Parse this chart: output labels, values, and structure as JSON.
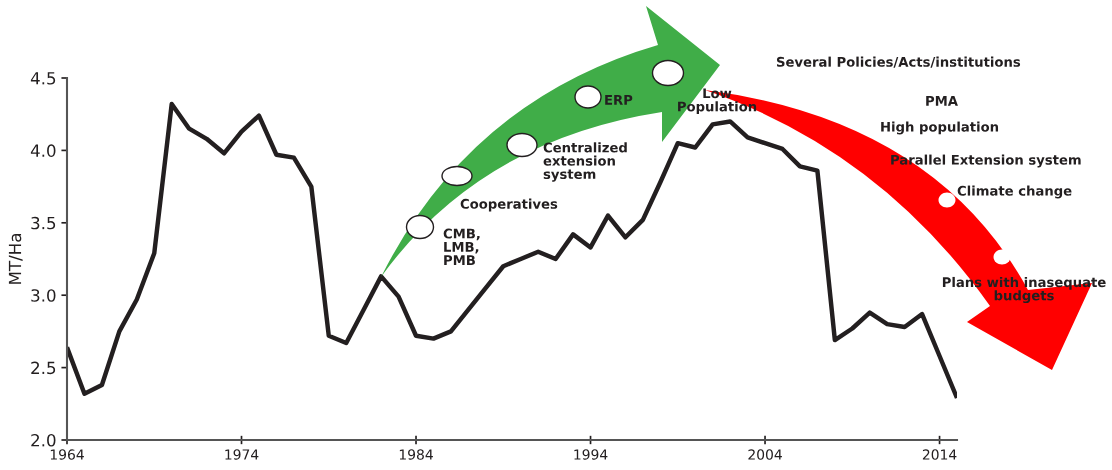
{
  "chart_data": {
    "type": "line",
    "ylabel": "MT/Ha",
    "x": [
      1964,
      1965,
      1966,
      1967,
      1968,
      1969,
      1970,
      1971,
      1972,
      1973,
      1974,
      1975,
      1976,
      1977,
      1978,
      1979,
      1980,
      1981,
      1982,
      1983,
      1984,
      1985,
      1986,
      1987,
      1988,
      1989,
      1990,
      1991,
      1992,
      1993,
      1994,
      1995,
      1996,
      1997,
      1998,
      1999,
      2000,
      2001,
      2002,
      2003,
      2004,
      2005,
      2006,
      2007,
      2008,
      2009,
      2010,
      2011,
      2012,
      2013,
      2014,
      2015
    ],
    "series": [
      {
        "color": "#231f20",
        "values": [
          2.64,
          2.32,
          2.38,
          2.75,
          2.97,
          3.29,
          4.32,
          4.15,
          4.08,
          3.98,
          4.13,
          4.24,
          3.97,
          3.95,
          3.75,
          2.72,
          2.67,
          2.9,
          3.13,
          2.99,
          2.72,
          2.7,
          2.75,
          2.9,
          3.05,
          3.2,
          3.25,
          3.3,
          3.25,
          3.42,
          3.33,
          3.55,
          3.4,
          3.52,
          3.78,
          4.05,
          4.02,
          4.18,
          4.2,
          4.09,
          4.05,
          4.01,
          3.89,
          3.86,
          2.69,
          2.77,
          2.88,
          2.8,
          2.78,
          2.87,
          2.58,
          2.29
        ]
      }
    ],
    "xlim": [
      1964,
      2015
    ],
    "xticks": [
      1964,
      1974,
      1984,
      1994,
      2004,
      2014
    ],
    "ylim": [
      2.0,
      4.5
    ],
    "yticks": [
      {
        "value": 2,
        "label": "2.0"
      },
      {
        "value": 2.5,
        "label": "2.5"
      },
      {
        "value": 3,
        "label": "3.0"
      },
      {
        "value": 3.5,
        "label": "3.5"
      },
      {
        "value": 4,
        "label": "4.0"
      },
      {
        "value": 4.5,
        "label": "4.5"
      }
    ],
    "annotations": [
      "CMB,\nLMB,\nPMB",
      "Cooperatives",
      "Centralized\nextension\nsystem",
      "ERP",
      "Low\nPopulation",
      "Several Policies/Acts/institutions",
      "PMA",
      "High population",
      "Parallel Extension system",
      "Climate change",
      "Plans with inasequate\nbudgets"
    ]
  }
}
